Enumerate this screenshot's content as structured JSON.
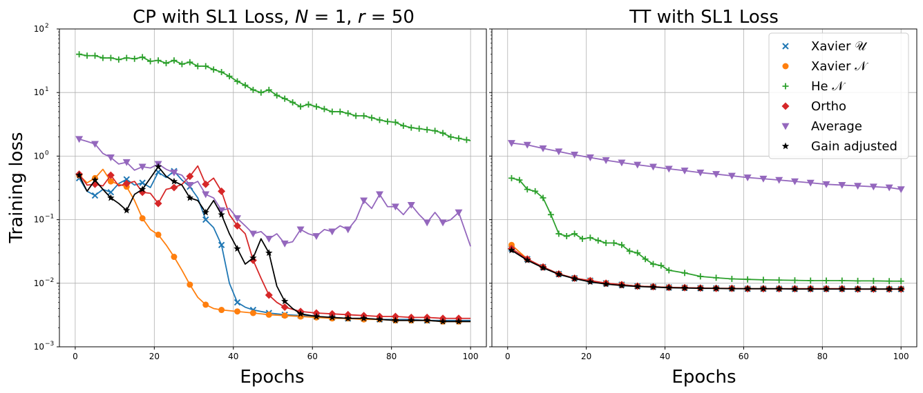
{
  "chart_data": [
    {
      "type": "line",
      "title": "CP with SL1 Loss, N = 1, r = 50",
      "title_parts": {
        "pre": "CP with SL1 Loss, ",
        "n_sym": "N",
        "n_eq": " = 1, ",
        "r_sym": "r",
        "r_eq": " = 50"
      },
      "xlabel": "Epochs",
      "ylabel": "Training  loss",
      "xlim": [
        -4,
        104
      ],
      "ylim": [
        0.001,
        100
      ],
      "yscale": "log",
      "grid": true,
      "xticks": [
        0,
        20,
        40,
        60,
        80,
        100
      ],
      "yticks": [
        {
          "value": 0.001,
          "base": "10",
          "exp": "−3"
        },
        {
          "value": 0.01,
          "base": "10",
          "exp": "−2"
        },
        {
          "value": 0.1,
          "base": "10",
          "exp": "−1"
        },
        {
          "value": 1,
          "base": "10",
          "exp": "0"
        },
        {
          "value": 10,
          "base": "10",
          "exp": "1"
        },
        {
          "value": 100,
          "base": "10",
          "exp": "2"
        }
      ],
      "series": [
        {
          "name": "Xavier 𝒰",
          "color": "#1f77b4",
          "marker": "x",
          "x": [
            1,
            3,
            5,
            7,
            9,
            11,
            13,
            15,
            17,
            19,
            21,
            23,
            25,
            27,
            29,
            31,
            33,
            35,
            37,
            39,
            41,
            43,
            45,
            47,
            49,
            53,
            57,
            61,
            65,
            69,
            73,
            77,
            81,
            85,
            89,
            93,
            97,
            100
          ],
          "y": [
            0.45,
            0.28,
            0.24,
            0.3,
            0.27,
            0.37,
            0.43,
            0.35,
            0.38,
            0.32,
            0.56,
            0.46,
            0.58,
            0.42,
            0.33,
            0.22,
            0.1,
            0.075,
            0.04,
            0.01,
            0.005,
            0.0042,
            0.0038,
            0.0036,
            0.0034,
            0.0032,
            0.0031,
            0.003,
            0.0029,
            0.0028,
            0.0028,
            0.0027,
            0.0027,
            0.0027,
            0.0026,
            0.0026,
            0.0026,
            0.0026
          ],
          "marker_every": 4
        },
        {
          "name": "Xavier 𝒩",
          "color": "#ff7f0e",
          "marker": "o",
          "x": [
            1,
            3,
            5,
            7,
            9,
            11,
            13,
            15,
            17,
            19,
            21,
            23,
            25,
            27,
            29,
            31,
            33,
            35,
            37,
            39,
            41,
            43,
            45,
            49,
            53,
            57,
            61,
            65,
            69,
            73,
            77,
            81,
            85,
            89,
            93,
            97,
            100
          ],
          "y": [
            0.5,
            0.38,
            0.45,
            0.62,
            0.4,
            0.36,
            0.33,
            0.2,
            0.105,
            0.07,
            0.058,
            0.04,
            0.026,
            0.016,
            0.0095,
            0.006,
            0.0046,
            0.004,
            0.0038,
            0.0037,
            0.0036,
            0.0035,
            0.0034,
            0.0032,
            0.0031,
            0.003,
            0.0029,
            0.0028,
            0.0028,
            0.0027,
            0.0027,
            0.0026,
            0.0026,
            0.0026,
            0.0025,
            0.0025,
            0.0025
          ],
          "marker_every": 4
        },
        {
          "name": "He 𝒩",
          "color": "#2ca02c",
          "marker": "+",
          "x": [
            1,
            3,
            5,
            7,
            9,
            11,
            13,
            15,
            17,
            19,
            21,
            23,
            25,
            27,
            29,
            31,
            33,
            35,
            37,
            39,
            41,
            43,
            45,
            47,
            49,
            51,
            53,
            55,
            57,
            59,
            61,
            63,
            65,
            67,
            69,
            71,
            73,
            75,
            77,
            79,
            81,
            83,
            85,
            87,
            89,
            91,
            93,
            95,
            97,
            99,
            100
          ],
          "y": [
            40,
            38,
            38,
            35,
            35,
            33,
            35,
            34,
            36,
            31,
            32,
            29,
            32,
            28,
            30,
            26,
            26,
            23,
            21,
            18,
            15,
            13,
            11,
            10,
            11,
            9,
            8,
            7,
            6,
            6.5,
            6,
            5.5,
            5,
            5,
            4.7,
            4.3,
            4.3,
            4,
            3.7,
            3.5,
            3.4,
            3,
            2.8,
            2.7,
            2.6,
            2.5,
            2.3,
            2,
            1.9,
            1.8,
            1.75
          ],
          "marker_every": 2
        },
        {
          "name": "Ortho",
          "color": "#d62728",
          "marker": "D",
          "x": [
            1,
            3,
            5,
            7,
            9,
            11,
            13,
            15,
            17,
            19,
            21,
            23,
            25,
            27,
            29,
            31,
            33,
            35,
            37,
            39,
            41,
            43,
            45,
            47,
            49,
            51,
            53,
            57,
            61,
            65,
            69,
            73,
            77,
            81,
            85,
            89,
            93,
            97,
            100
          ],
          "y": [
            0.52,
            0.35,
            0.36,
            0.34,
            0.5,
            0.34,
            0.37,
            0.4,
            0.27,
            0.26,
            0.18,
            0.3,
            0.32,
            0.36,
            0.48,
            0.7,
            0.36,
            0.45,
            0.28,
            0.12,
            0.08,
            0.06,
            0.023,
            0.012,
            0.0065,
            0.005,
            0.0042,
            0.0036,
            0.0034,
            0.0033,
            0.0032,
            0.0031,
            0.003,
            0.003,
            0.0029,
            0.0029,
            0.0028,
            0.0028,
            0.0028
          ],
          "marker_every": 4
        },
        {
          "name": "Average",
          "color": "#9467bd",
          "marker": "v",
          "x": [
            1,
            3,
            5,
            7,
            9,
            11,
            13,
            15,
            17,
            19,
            21,
            23,
            25,
            27,
            29,
            31,
            33,
            35,
            37,
            39,
            41,
            43,
            45,
            47,
            49,
            51,
            53,
            55,
            57,
            59,
            61,
            63,
            65,
            67,
            69,
            71,
            73,
            75,
            77,
            79,
            81,
            83,
            85,
            87,
            89,
            91,
            93,
            95,
            97,
            100
          ],
          "y": [
            1.85,
            1.7,
            1.55,
            1.1,
            0.95,
            0.75,
            0.8,
            0.6,
            0.68,
            0.65,
            0.75,
            0.62,
            0.55,
            0.5,
            0.35,
            0.4,
            0.25,
            0.22,
            0.14,
            0.15,
            0.105,
            0.08,
            0.06,
            0.065,
            0.05,
            0.06,
            0.042,
            0.045,
            0.07,
            0.06,
            0.055,
            0.07,
            0.065,
            0.08,
            0.07,
            0.1,
            0.2,
            0.15,
            0.25,
            0.16,
            0.16,
            0.12,
            0.17,
            0.12,
            0.09,
            0.13,
            0.09,
            0.1,
            0.13,
            0.038
          ],
          "marker_every": 4
        },
        {
          "name": "Gain adjusted",
          "color": "#000000",
          "marker": "*",
          "x": [
            1,
            3,
            5,
            7,
            9,
            11,
            13,
            15,
            17,
            19,
            21,
            23,
            25,
            27,
            29,
            31,
            33,
            35,
            37,
            39,
            41,
            43,
            45,
            47,
            49,
            51,
            53,
            55,
            57,
            61,
            65,
            69,
            73,
            77,
            81,
            85,
            89,
            93,
            97,
            100
          ],
          "y": [
            0.5,
            0.28,
            0.42,
            0.3,
            0.22,
            0.18,
            0.14,
            0.25,
            0.3,
            0.45,
            0.68,
            0.48,
            0.4,
            0.35,
            0.22,
            0.2,
            0.13,
            0.2,
            0.12,
            0.06,
            0.035,
            0.02,
            0.025,
            0.05,
            0.03,
            0.009,
            0.0052,
            0.004,
            0.0033,
            0.003,
            0.0029,
            0.0028,
            0.0028,
            0.0027,
            0.0026,
            0.0026,
            0.0026,
            0.0025,
            0.0025,
            0.0025
          ],
          "marker_every": 4
        }
      ]
    },
    {
      "type": "line",
      "title": "TT with SL1 Loss",
      "xlabel": "Epochs",
      "ylabel": "",
      "xlim": [
        -4,
        104
      ],
      "ylim": [
        0.001,
        100
      ],
      "yscale": "log",
      "grid": true,
      "shared_y": true,
      "xticks": [
        0,
        20,
        40,
        60,
        80,
        100
      ],
      "legend": {
        "location": "top-right"
      },
      "series": [
        {
          "name": "Xavier 𝒰",
          "color": "#1f77b4",
          "marker": "x",
          "x": [
            1,
            5,
            9,
            13,
            17,
            21,
            25,
            29,
            33,
            37,
            41,
            45,
            49,
            53,
            57,
            61,
            65,
            69,
            73,
            77,
            81,
            85,
            89,
            93,
            97,
            100
          ],
          "y": [
            0.035,
            0.024,
            0.018,
            0.014,
            0.012,
            0.011,
            0.01,
            0.0095,
            0.009,
            0.0088,
            0.0086,
            0.0085,
            0.0084,
            0.0083,
            0.0083,
            0.0082,
            0.0082,
            0.0082,
            0.0082,
            0.0082,
            0.0082,
            0.0082,
            0.0081,
            0.0081,
            0.0081,
            0.0081
          ]
        },
        {
          "name": "Xavier 𝒩",
          "color": "#ff7f0e",
          "marker": "o",
          "x": [
            1,
            5,
            9,
            13,
            17,
            21,
            25,
            29,
            33,
            37,
            41,
            45,
            49,
            53,
            57,
            61,
            65,
            69,
            73,
            77,
            81,
            85,
            89,
            93,
            97,
            100
          ],
          "y": [
            0.04,
            0.024,
            0.018,
            0.014,
            0.012,
            0.011,
            0.01,
            0.0095,
            0.009,
            0.0088,
            0.0086,
            0.0085,
            0.0084,
            0.0083,
            0.0083,
            0.0082,
            0.0082,
            0.0082,
            0.0082,
            0.0082,
            0.0082,
            0.0082,
            0.0081,
            0.0081,
            0.0081,
            0.0081
          ]
        },
        {
          "name": "He 𝒩",
          "color": "#2ca02c",
          "marker": "+",
          "x": [
            1,
            3,
            5,
            7,
            9,
            11,
            13,
            15,
            17,
            19,
            21,
            23,
            25,
            27,
            29,
            31,
            33,
            35,
            37,
            39,
            41,
            45,
            49,
            53,
            57,
            61,
            65,
            69,
            73,
            77,
            81,
            85,
            89,
            93,
            97,
            100
          ],
          "y": [
            0.45,
            0.42,
            0.3,
            0.28,
            0.22,
            0.12,
            0.06,
            0.055,
            0.06,
            0.05,
            0.052,
            0.047,
            0.043,
            0.043,
            0.04,
            0.032,
            0.03,
            0.024,
            0.02,
            0.019,
            0.016,
            0.0145,
            0.0128,
            0.0122,
            0.0117,
            0.0115,
            0.0113,
            0.0112,
            0.0111,
            0.011,
            0.011,
            0.011,
            0.0109,
            0.0109,
            0.0108,
            0.0108
          ],
          "marker_every": 2
        },
        {
          "name": "Ortho",
          "color": "#d62728",
          "marker": "D",
          "x": [
            1,
            5,
            9,
            13,
            17,
            21,
            25,
            29,
            33,
            37,
            41,
            45,
            49,
            53,
            57,
            61,
            65,
            69,
            73,
            77,
            81,
            85,
            89,
            93,
            97,
            100
          ],
          "y": [
            0.035,
            0.024,
            0.018,
            0.014,
            0.012,
            0.011,
            0.01,
            0.0095,
            0.009,
            0.0088,
            0.0086,
            0.0085,
            0.0084,
            0.0083,
            0.0083,
            0.0082,
            0.0082,
            0.0082,
            0.0082,
            0.0082,
            0.0082,
            0.0082,
            0.0081,
            0.0081,
            0.0081,
            0.0081
          ]
        },
        {
          "name": "Average",
          "color": "#9467bd",
          "marker": "v",
          "x": [
            1,
            5,
            9,
            13,
            17,
            21,
            25,
            29,
            33,
            37,
            41,
            45,
            49,
            53,
            57,
            61,
            65,
            69,
            73,
            77,
            81,
            85,
            89,
            93,
            97,
            100
          ],
          "y": [
            1.6,
            1.5,
            1.32,
            1.18,
            1.05,
            0.95,
            0.86,
            0.79,
            0.73,
            0.68,
            0.63,
            0.59,
            0.55,
            0.52,
            0.49,
            0.46,
            0.44,
            0.42,
            0.4,
            0.38,
            0.36,
            0.35,
            0.34,
            0.33,
            0.32,
            0.3
          ]
        },
        {
          "name": "Gain adjusted",
          "color": "#000000",
          "marker": "*",
          "x": [
            1,
            5,
            9,
            13,
            17,
            21,
            25,
            29,
            33,
            37,
            41,
            45,
            49,
            53,
            57,
            61,
            65,
            69,
            73,
            77,
            81,
            85,
            89,
            93,
            97,
            100
          ],
          "y": [
            0.033,
            0.023,
            0.0175,
            0.0138,
            0.0118,
            0.0105,
            0.0097,
            0.0092,
            0.0089,
            0.0087,
            0.0085,
            0.0084,
            0.0083,
            0.0083,
            0.0082,
            0.0082,
            0.0082,
            0.0082,
            0.0081,
            0.0081,
            0.0081,
            0.0081,
            0.0081,
            0.0081,
            0.0081,
            0.0081
          ]
        }
      ]
    }
  ]
}
